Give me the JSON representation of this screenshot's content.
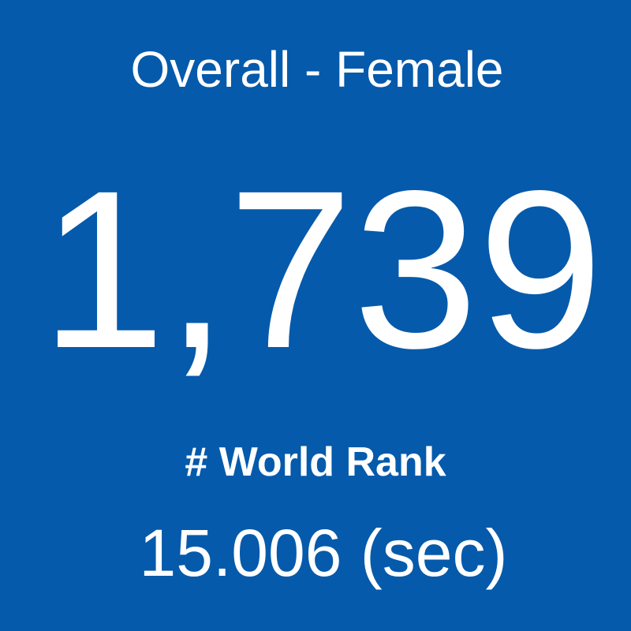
{
  "card": {
    "title": "Overall - Female",
    "value": "1,739",
    "label": "# World Rank",
    "detail": "15.006 (sec)"
  }
}
